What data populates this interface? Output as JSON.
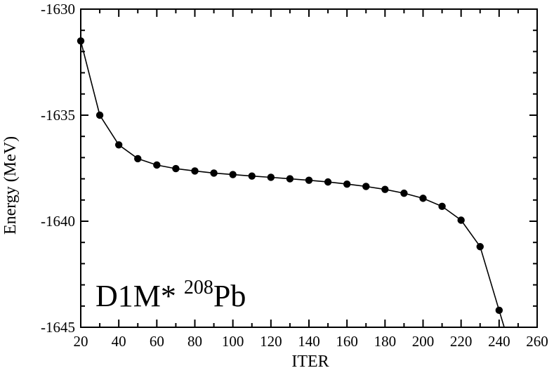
{
  "chart_data": {
    "type": "line",
    "xlabel": "ITER",
    "ylabel": "Energy (MeV)",
    "xlim": [
      20,
      260
    ],
    "ylim": [
      -1645,
      -1630
    ],
    "x_ticks": [
      "20",
      "40",
      "60",
      "80",
      "100",
      "120",
      "140",
      "160",
      "180",
      "200",
      "220",
      "240",
      "260"
    ],
    "y_ticks": [
      "-1630",
      "-1635",
      "-1640",
      "-1645"
    ],
    "grid": false,
    "annotation": {
      "prefix": "D1M* ",
      "superscript": "208",
      "suffix": "Pb"
    },
    "series": [
      {
        "marker": "circle",
        "color": "#000000",
        "x": [
          20,
          30,
          40,
          50,
          60,
          70,
          80,
          90,
          100,
          110,
          120,
          130,
          140,
          150,
          160,
          170,
          180,
          190,
          200,
          210,
          220,
          230,
          240
        ],
        "y": [
          -1631.5,
          -1635.0,
          -1636.4,
          -1637.05,
          -1637.35,
          -1637.52,
          -1637.63,
          -1637.73,
          -1637.8,
          -1637.87,
          -1637.93,
          -1638.0,
          -1638.07,
          -1638.15,
          -1638.25,
          -1638.36,
          -1638.5,
          -1638.68,
          -1638.92,
          -1639.3,
          -1639.95,
          -1641.2,
          -1644.2
        ]
      }
    ]
  }
}
